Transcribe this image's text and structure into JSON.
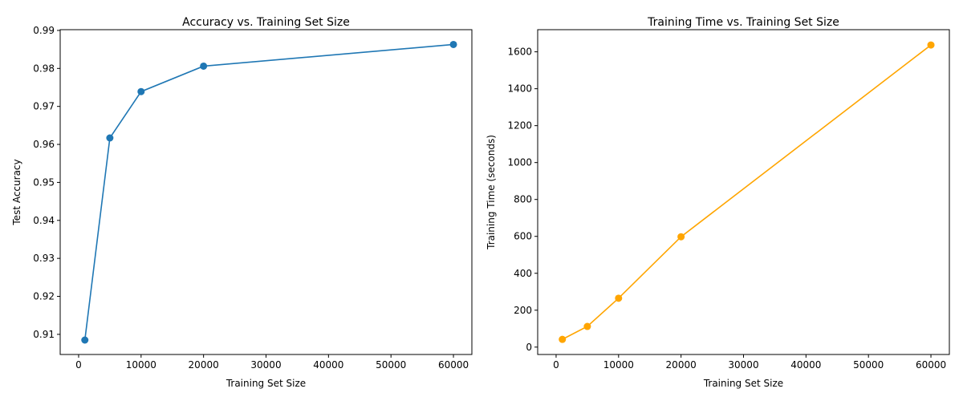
{
  "chart_data": [
    {
      "type": "line",
      "title": "Accuracy vs. Training Set Size",
      "xlabel": "Training Set Size",
      "ylabel": "Test Accuracy",
      "xlim": [
        -2950,
        62950
      ],
      "ylim": [
        0.9047,
        0.9902
      ],
      "xticks": [
        0,
        10000,
        20000,
        30000,
        40000,
        50000,
        60000
      ],
      "xtick_labels": [
        "0",
        "10000",
        "20000",
        "30000",
        "40000",
        "50000",
        "60000"
      ],
      "yticks": [
        0.91,
        0.92,
        0.93,
        0.94,
        0.95,
        0.96,
        0.97,
        0.98,
        0.99
      ],
      "ytick_labels": [
        "0.91",
        "0.92",
        "0.93",
        "0.94",
        "0.95",
        "0.96",
        "0.97",
        "0.98",
        "0.99"
      ],
      "grid": false,
      "series": [
        {
          "color": "#1f77b4",
          "marker": "circle",
          "x": [
            1000,
            5000,
            10000,
            20000,
            60000
          ],
          "y": [
            0.9085,
            0.9617,
            0.9739,
            0.9806,
            0.9863
          ]
        }
      ]
    },
    {
      "type": "line",
      "title": "Training Time vs. Training Set Size",
      "xlabel": "Training Set Size",
      "ylabel": "Training Time (seconds)",
      "xlim": [
        -2950,
        62950
      ],
      "ylim": [
        -40,
        1720
      ],
      "xticks": [
        0,
        10000,
        20000,
        30000,
        40000,
        50000,
        60000
      ],
      "xtick_labels": [
        "0",
        "10000",
        "20000",
        "30000",
        "40000",
        "50000",
        "60000"
      ],
      "yticks": [
        0,
        200,
        400,
        600,
        800,
        1000,
        1200,
        1400,
        1600
      ],
      "ytick_labels": [
        "0",
        "200",
        "400",
        "600",
        "800",
        "1000",
        "1200",
        "1400",
        "1600"
      ],
      "grid": false,
      "series": [
        {
          "color": "#ffa500",
          "marker": "circle",
          "x": [
            1000,
            5000,
            10000,
            20000,
            60000
          ],
          "y": [
            42,
            112,
            265,
            598,
            1637
          ]
        }
      ]
    }
  ]
}
